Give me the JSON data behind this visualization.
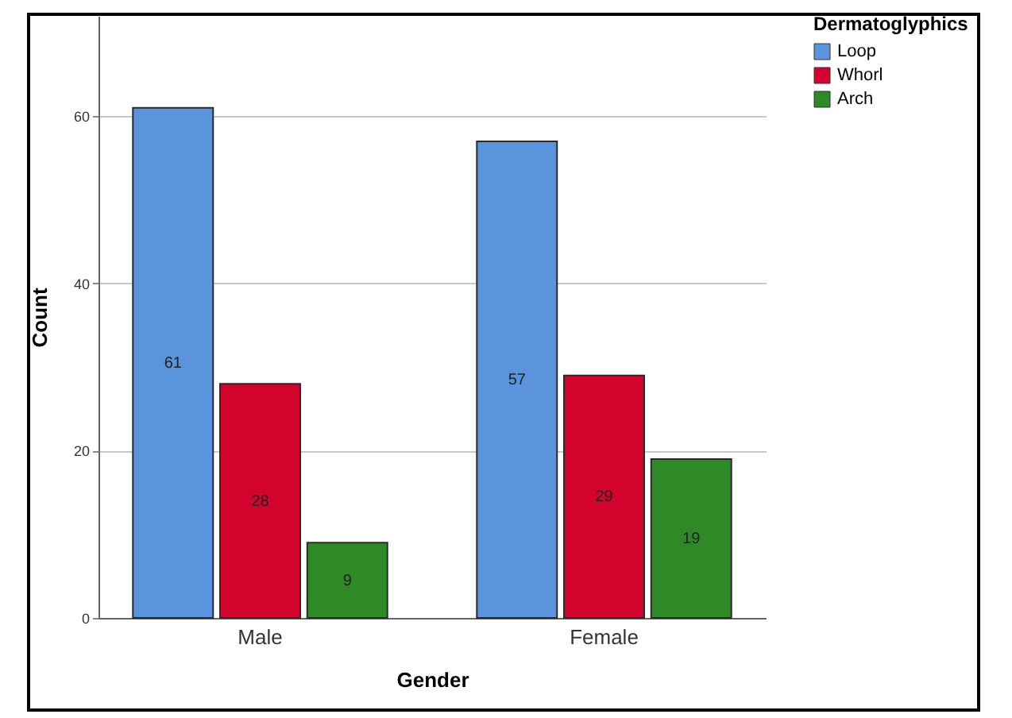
{
  "chart_data": {
    "type": "bar",
    "xlabel": "Gender",
    "ylabel": "Count",
    "legend_title": "Dermatoglyphics",
    "categories": [
      "Male",
      "Female"
    ],
    "series": [
      {
        "name": "Loop",
        "color": "#5a94dd",
        "values": [
          61,
          57
        ]
      },
      {
        "name": "Whorl",
        "color": "#d2042d",
        "values": [
          28,
          29
        ]
      },
      {
        "name": "Arch",
        "color": "#2e8a27",
        "values": [
          9,
          19
        ]
      }
    ],
    "ylim": [
      0,
      72
    ],
    "yticks": [
      0,
      20,
      40,
      60
    ],
    "grid": "y",
    "legend": "top right",
    "data_labels": true
  }
}
